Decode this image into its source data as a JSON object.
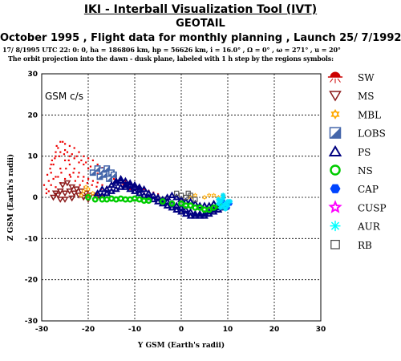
{
  "header": {
    "title": "IKI - Interball Visualization Tool (IVT)",
    "subtitle": "GEOTAIL",
    "flight": "October  1995 ,  Flight data for monthly planning ,   Launch 25/ 7/1992",
    "orbit_params": "17/ 8/1995 UTC 22: 0: 0, ha = 186806 km, hp = 56626 km, i = 16.0° , Ω =    0° , ω = 271° , u =  20°",
    "orbit_note": "The orbit projection into the dawn - dusk plane, labeled with 1 h step by the regions symbols:"
  },
  "chart_data": {
    "type": "scatter",
    "frame_label": "GSM c/s",
    "xlabel": "Y GSM (Earth's radii)",
    "ylabel": "Z GSM (Earth's radii)",
    "xlim": [
      -30,
      30
    ],
    "ylim": [
      -30,
      30
    ],
    "xticks": [
      -30,
      -20,
      -10,
      0,
      10,
      20,
      30
    ],
    "yticks": [
      -30,
      -20,
      -10,
      0,
      10,
      20,
      30
    ],
    "grid": true,
    "legend_position": "right",
    "legend": [
      {
        "code": "SW",
        "symbol": "sun",
        "color": "#cc0000"
      },
      {
        "code": "MS",
        "symbol": "triangle-down",
        "color": "#8b1a1a"
      },
      {
        "code": "MBL",
        "symbol": "star6",
        "color": "#ffaa00"
      },
      {
        "code": "LOBS",
        "symbol": "square-diag",
        "color": "#4466aa"
      },
      {
        "code": "PS",
        "symbol": "triangle-up",
        "color": "#000080"
      },
      {
        "code": "NS",
        "symbol": "circle-open",
        "color": "#00cc00"
      },
      {
        "code": "CAP",
        "symbol": "hexagon",
        "color": "#0044ff"
      },
      {
        "code": "CUSP",
        "symbol": "star5",
        "color": "#ff00ff"
      },
      {
        "code": "AUR",
        "symbol": "asterisk",
        "color": "#00ffff"
      },
      {
        "code": "RB",
        "symbol": "square-open",
        "color": "#444444"
      }
    ],
    "series": [
      {
        "region": "SW",
        "color": "#ee0000",
        "points": [
          [
            -29,
            2
          ],
          [
            -28.5,
            4
          ],
          [
            -28,
            6
          ],
          [
            -27.5,
            8
          ],
          [
            -27,
            10
          ],
          [
            -26.5,
            12
          ],
          [
            -26,
            13.5
          ],
          [
            -25,
            13
          ],
          [
            -24,
            12.5
          ],
          [
            -23,
            12
          ],
          [
            -22,
            11
          ],
          [
            -21,
            10
          ],
          [
            -20,
            9.5
          ],
          [
            -19,
            9
          ],
          [
            -18,
            8
          ],
          [
            -17,
            7.2
          ],
          [
            -16,
            6.5
          ],
          [
            -15,
            6
          ],
          [
            -14,
            5.2
          ],
          [
            -13,
            4.5
          ],
          [
            -12,
            4
          ],
          [
            -11,
            3.4
          ],
          [
            -10,
            3
          ],
          [
            -9,
            2.4
          ],
          [
            -8,
            2
          ],
          [
            -7,
            1.6
          ],
          [
            -6,
            1.2
          ],
          [
            -5,
            0.8
          ],
          [
            -29,
            1
          ],
          [
            -28,
            3
          ],
          [
            -27,
            5
          ],
          [
            -26,
            7
          ],
          [
            -25,
            9
          ],
          [
            -24,
            10
          ],
          [
            -23,
            9.5
          ],
          [
            -22,
            8.5
          ],
          [
            -21,
            8
          ],
          [
            -20,
            7
          ],
          [
            -19,
            6.5
          ],
          [
            -18,
            5.8
          ],
          [
            -17,
            5
          ],
          [
            -16,
            4.6
          ],
          [
            -15,
            4
          ],
          [
            -14,
            3.6
          ],
          [
            -13,
            3
          ],
          [
            -12,
            2.6
          ],
          [
            -11,
            2
          ],
          [
            -10,
            1.8
          ],
          [
            -9,
            1.4
          ],
          [
            -8,
            1
          ],
          [
            -28,
            8
          ],
          [
            -27,
            11
          ],
          [
            -26,
            11
          ],
          [
            -25,
            11.5
          ],
          [
            -24,
            8
          ],
          [
            -23,
            7
          ],
          [
            -22,
            6
          ],
          [
            -21,
            5
          ],
          [
            -20,
            4.5
          ],
          [
            -19,
            4
          ],
          [
            -18,
            3.6
          ],
          [
            -17,
            3
          ],
          [
            -16,
            2.5
          ],
          [
            -15,
            2
          ],
          [
            -29.5,
            3
          ],
          [
            -28.8,
            5.5
          ],
          [
            -27.8,
            9
          ],
          [
            -26.8,
            12.5
          ],
          [
            -25.5,
            13.5
          ],
          [
            -24.5,
            11
          ],
          [
            -23.5,
            10.5
          ],
          [
            -22.5,
            10
          ],
          [
            -21.5,
            9
          ],
          [
            -20.5,
            8.5
          ],
          [
            -19.5,
            7.5
          ],
          [
            -18.5,
            7
          ],
          [
            -17.5,
            6
          ],
          [
            -16.5,
            5.5
          ],
          [
            -15.5,
            5
          ],
          [
            -14.5,
            4.5
          ],
          [
            -13.5,
            3.8
          ],
          [
            -12.5,
            3.2
          ],
          [
            -11.5,
            2.8
          ],
          [
            -10.5,
            2.2
          ],
          [
            -9.5,
            2
          ],
          [
            -28.2,
            7
          ],
          [
            -27.2,
            9.5
          ],
          [
            -26.2,
            10
          ],
          [
            -25.2,
            10.5
          ],
          [
            -24.2,
            9
          ],
          [
            -23.2,
            6
          ],
          [
            -22.2,
            5
          ],
          [
            -21.2,
            4
          ],
          [
            -20.2,
            3.5
          ],
          [
            -19.2,
            3
          ],
          [
            -18.2,
            2.6
          ],
          [
            -17.2,
            2
          ],
          [
            -16.2,
            1.6
          ],
          [
            -25.8,
            6
          ],
          [
            -24.8,
            7
          ],
          [
            -23.8,
            5
          ],
          [
            -22.8,
            4
          ],
          [
            -21.8,
            3
          ],
          [
            -20.8,
            2.5
          ],
          [
            -27.5,
            4.5
          ],
          [
            -26.5,
            5
          ],
          [
            -28.5,
            1.5
          ],
          [
            -27,
            2.5
          ],
          [
            -26,
            3.5
          ],
          [
            -25,
            4.5
          ],
          [
            -24,
            5.5
          ]
        ]
      },
      {
        "region": "MS",
        "color": "#8b1a1a",
        "points": [
          [
            -27,
            1
          ],
          [
            -26,
            1.5
          ],
          [
            -25.5,
            3
          ],
          [
            -24.5,
            3.5
          ],
          [
            -26.5,
            0.5
          ],
          [
            -23.5,
            2.5
          ],
          [
            -22.5,
            2
          ],
          [
            -21.5,
            1.5
          ],
          [
            -20.5,
            1
          ],
          [
            -19.5,
            0.5
          ],
          [
            -18.5,
            0.5
          ],
          [
            -17.5,
            0
          ],
          [
            -25,
            1
          ],
          [
            -24,
            1.5
          ],
          [
            -23,
            1
          ],
          [
            -22,
            0.5
          ],
          [
            -21,
            0
          ],
          [
            -20,
            -0.5
          ],
          [
            -27.5,
            0
          ],
          [
            -26,
            -0.5
          ],
          [
            -25,
            -0.5
          ],
          [
            -23.5,
            -0.2
          ]
        ]
      },
      {
        "region": "MBL",
        "color": "#ffaa00",
        "points": [
          [
            -21,
            1.5
          ],
          [
            -20.5,
            2.5
          ],
          [
            -19,
            1
          ],
          [
            -20,
            2
          ],
          [
            -21.5,
            0.5
          ],
          [
            -20,
            0.5
          ],
          [
            5,
            0
          ],
          [
            6,
            0.5
          ],
          [
            7,
            0.5
          ],
          [
            8,
            0
          ],
          [
            9,
            0.5
          ],
          [
            2,
            0
          ],
          [
            3,
            0.5
          ]
        ]
      },
      {
        "region": "LOBS",
        "color": "#4466aa",
        "points": [
          [
            -19,
            6
          ],
          [
            -18,
            7
          ],
          [
            -17,
            6.5
          ],
          [
            -16,
            7
          ],
          [
            -15,
            6
          ],
          [
            -16.5,
            5.5
          ],
          [
            -17.5,
            5
          ],
          [
            -15.5,
            4.5
          ],
          [
            -14.5,
            5.5
          ]
        ]
      },
      {
        "region": "PS",
        "color": "#000080",
        "points": [
          [
            -18,
            1
          ],
          [
            -17,
            2
          ],
          [
            -16,
            2
          ],
          [
            -15,
            3
          ],
          [
            -14,
            3.5
          ],
          [
            -13,
            4
          ],
          [
            -12,
            4
          ],
          [
            -11,
            3.5
          ],
          [
            -10,
            3
          ],
          [
            -9,
            2.5
          ],
          [
            -8,
            2
          ],
          [
            -7,
            1
          ],
          [
            -6,
            0.5
          ],
          [
            -5,
            0
          ],
          [
            -4,
            -0.5
          ],
          [
            -3,
            -1
          ],
          [
            -2,
            -1.5
          ],
          [
            -1,
            -2
          ],
          [
            0,
            -2.5
          ],
          [
            1,
            -3
          ],
          [
            2,
            -3.5
          ],
          [
            3,
            -4
          ],
          [
            4,
            -4
          ],
          [
            5,
            -4
          ],
          [
            6,
            -3.5
          ],
          [
            7,
            -3
          ],
          [
            8,
            -2.5
          ],
          [
            9,
            -2
          ],
          [
            -17,
            0.5
          ],
          [
            -16,
            1
          ],
          [
            -15,
            1.5
          ],
          [
            -14,
            2
          ],
          [
            -13,
            2.5
          ],
          [
            -12,
            2.5
          ],
          [
            -11,
            2
          ],
          [
            -10,
            1.5
          ],
          [
            -9,
            1
          ],
          [
            -8,
            0.5
          ],
          [
            -7,
            0
          ],
          [
            -6,
            -0.5
          ],
          [
            -5,
            -1
          ],
          [
            -4,
            -1.5
          ],
          [
            -3,
            -2
          ],
          [
            -2,
            -2.5
          ],
          [
            -1,
            -3
          ],
          [
            0,
            -3.5
          ],
          [
            1,
            -4
          ],
          [
            2,
            -4.5
          ],
          [
            3,
            -4.5
          ],
          [
            4,
            -4.5
          ],
          [
            5,
            -4.5
          ],
          [
            6,
            -4
          ],
          [
            7,
            -3.5
          ],
          [
            8,
            -3
          ],
          [
            9,
            -2.5
          ],
          [
            -3,
            0
          ],
          [
            -2,
            0.5
          ],
          [
            -1,
            0
          ],
          [
            0,
            -0.5
          ],
          [
            1,
            -1
          ],
          [
            2,
            -1
          ],
          [
            3,
            -1.5
          ],
          [
            4,
            -2
          ],
          [
            5,
            -2
          ],
          [
            6,
            -2
          ],
          [
            7,
            -1.5
          ],
          [
            -14,
            4
          ],
          [
            -13,
            4.5
          ],
          [
            -12,
            3
          ],
          [
            -11,
            3
          ],
          [
            -10,
            2.5
          ],
          [
            -9,
            1.8
          ]
        ]
      },
      {
        "region": "NS",
        "color": "#00cc00",
        "points": [
          [
            -20,
            0
          ],
          [
            -18.5,
            -0.5
          ],
          [
            -17,
            -0.5
          ],
          [
            -16,
            -0.5
          ],
          [
            -15,
            -0.3
          ],
          [
            -14,
            -0.5
          ],
          [
            -13,
            -0.3
          ],
          [
            -12,
            -0.5
          ],
          [
            -11,
            -0.5
          ],
          [
            -10,
            -0.3
          ],
          [
            -9,
            -0.5
          ],
          [
            -8,
            -0.8
          ],
          [
            -7,
            -0.8
          ],
          [
            -4,
            -1
          ],
          [
            -2,
            -1.5
          ],
          [
            0,
            -1.5
          ],
          [
            1,
            -2
          ],
          [
            2,
            -2
          ],
          [
            3,
            -2.5
          ],
          [
            4,
            -2.5
          ],
          [
            5,
            -3
          ],
          [
            6,
            -3
          ],
          [
            7,
            -2.5
          ],
          [
            8,
            -2
          ],
          [
            9,
            -1.5
          ]
        ]
      },
      {
        "region": "CAP",
        "color": "#0044ff",
        "points": [
          [
            9,
            -1
          ],
          [
            9.5,
            -2
          ],
          [
            10,
            -2.5
          ],
          [
            10.5,
            -1.5
          ]
        ]
      },
      {
        "region": "AUR",
        "color": "#00e5ff",
        "points": [
          [
            8,
            -0.5
          ],
          [
            8.5,
            -1
          ],
          [
            9,
            -2
          ],
          [
            9.5,
            -1.5
          ],
          [
            10,
            -1
          ],
          [
            10,
            -2
          ],
          [
            9,
            -0.2
          ],
          [
            9.5,
            -2.8
          ],
          [
            8.5,
            -2.5
          ],
          [
            10.5,
            -1
          ],
          [
            8,
            -1.5
          ],
          [
            9,
            0.5
          ]
        ]
      },
      {
        "region": "RB",
        "color": "#555555",
        "points": [
          [
            0,
            0.5
          ],
          [
            1,
            0
          ],
          [
            1.5,
            1
          ],
          [
            -1,
            1
          ],
          [
            2,
            0.5
          ],
          [
            3,
            -0.5
          ]
        ]
      }
    ]
  }
}
